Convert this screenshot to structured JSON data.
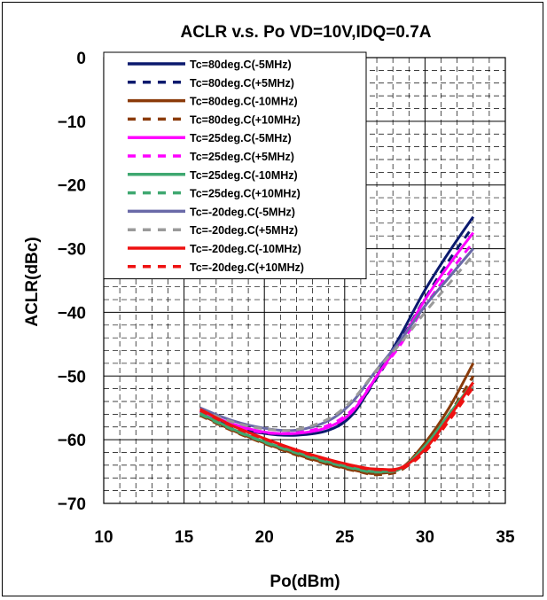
{
  "chart_data": {
    "type": "line",
    "title": "ACLR v.s. Po VD=10V,IDQ=0.7A",
    "xlabel": "Po(dBm)",
    "ylabel": "ACLR(dBc)",
    "xlim": [
      10,
      35
    ],
    "ylim": [
      -70,
      0
    ],
    "x_ticks": [
      "10",
      "15",
      "20",
      "25",
      "30",
      "35"
    ],
    "y_ticks": [
      "0",
      "-10",
      "-20",
      "-30",
      "-40",
      "-50",
      "-60",
      "-70"
    ],
    "grid": true,
    "legend_position": "top-left",
    "series": [
      {
        "name": "Tc=80deg.C(-5MHz)",
        "color": "#0b1a6e",
        "dash": "solid",
        "x": [
          16,
          18,
          20,
          22,
          24,
          25.5,
          27,
          28.5,
          30,
          31.5,
          33
        ],
        "y": [
          -55.5,
          -57.8,
          -59.0,
          -59.3,
          -58.5,
          -56.0,
          -50.0,
          -43.5,
          -36.5,
          -30.5,
          -25.0
        ]
      },
      {
        "name": "Tc=80deg.C(+5MHz)",
        "color": "#0b1a6e",
        "dash": "dashed",
        "x": [
          16,
          18,
          20,
          22,
          24,
          25.5,
          27,
          28.5,
          30,
          31.5,
          33
        ],
        "y": [
          -55.8,
          -58.0,
          -59.0,
          -59.0,
          -58.0,
          -55.8,
          -50.3,
          -44.3,
          -37.8,
          -31.8,
          -26.5
        ]
      },
      {
        "name": "Tc=80deg.C(-10MHz)",
        "color": "#8b3b0a",
        "dash": "solid",
        "x": [
          16,
          18,
          20,
          22,
          24,
          26,
          27,
          28.5,
          30,
          31.5,
          33
        ],
        "y": [
          -56.0,
          -58.5,
          -60.5,
          -62.3,
          -63.8,
          -65.0,
          -65.3,
          -64.5,
          -60.5,
          -55.0,
          -48.0
        ]
      },
      {
        "name": "Tc=80deg.C(+10MHz)",
        "color": "#8b3b0a",
        "dash": "dashed",
        "x": [
          16,
          18,
          20,
          22,
          24,
          26,
          27,
          28.5,
          30,
          31.5,
          33
        ],
        "y": [
          -56.2,
          -58.6,
          -60.6,
          -62.4,
          -63.9,
          -65.1,
          -65.5,
          -64.8,
          -61.3,
          -56.0,
          -50.0
        ]
      },
      {
        "name": "Tc=25deg.C(-5MHz)",
        "color": "#ff00ff",
        "dash": "solid",
        "x": [
          16,
          18,
          20,
          22,
          24,
          25.5,
          27,
          28.5,
          30,
          31.5,
          33
        ],
        "y": [
          -55.5,
          -57.5,
          -58.8,
          -59.0,
          -58.0,
          -55.5,
          -50.0,
          -44.5,
          -38.0,
          -32.5,
          -27.5
        ]
      },
      {
        "name": "Tc=25deg.C(+5MHz)",
        "color": "#ff00ff",
        "dash": "dashed",
        "x": [
          16,
          18,
          20,
          22,
          24,
          25.5,
          27,
          28.5,
          30,
          31.5,
          33
        ],
        "y": [
          -55.8,
          -57.8,
          -58.9,
          -58.9,
          -57.7,
          -55.2,
          -50.0,
          -45.0,
          -39.0,
          -33.8,
          -29.0
        ]
      },
      {
        "name": "Tc=25deg.C(-10MHz)",
        "color": "#3fa870",
        "dash": "solid",
        "x": [
          16,
          18,
          20,
          22,
          24,
          26,
          27,
          28.5,
          30,
          31.5,
          33
        ],
        "y": [
          -55.8,
          -58.3,
          -60.3,
          -62.0,
          -63.5,
          -64.7,
          -65.0,
          -64.5,
          -61.0,
          -56.0,
          -51.0
        ]
      },
      {
        "name": "Tc=25deg.C(+10MHz)",
        "color": "#3fa870",
        "dash": "dashed",
        "x": [
          16,
          18,
          20,
          22,
          24,
          26,
          27,
          28.5,
          30,
          31.5,
          33
        ],
        "y": [
          -56.0,
          -58.4,
          -60.4,
          -62.1,
          -63.6,
          -64.8,
          -65.1,
          -64.6,
          -61.4,
          -56.5,
          -51.5
        ]
      },
      {
        "name": "Tc=-20deg.C(-5MHz)",
        "color": "#6a6aa8",
        "dash": "solid",
        "x": [
          16,
          18,
          20,
          22,
          24,
          25.5,
          27,
          28.5,
          30,
          31.5,
          33
        ],
        "y": [
          -55.0,
          -57.0,
          -58.2,
          -58.5,
          -57.0,
          -54.0,
          -49.0,
          -44.3,
          -39.0,
          -34.5,
          -30.0
        ]
      },
      {
        "name": "Tc=-20deg.C(+5MHz)",
        "color": "#9a9a9a",
        "dash": "dashed",
        "x": [
          16,
          18,
          20,
          22,
          24,
          25.5,
          27,
          28.5,
          30,
          31.5,
          33
        ],
        "y": [
          -55.3,
          -57.2,
          -58.3,
          -58.4,
          -56.7,
          -53.7,
          -49.0,
          -44.8,
          -40.0,
          -35.5,
          -31.0
        ]
      },
      {
        "name": "Tc=-20deg.C(-10MHz)",
        "color": "#ee1111",
        "dash": "solid",
        "x": [
          16,
          18,
          20,
          22,
          24,
          26,
          27,
          28.5,
          30,
          31.5,
          33
        ],
        "y": [
          -55.2,
          -57.8,
          -59.8,
          -61.6,
          -63.1,
          -64.3,
          -64.6,
          -64.4,
          -61.5,
          -56.5,
          -51.0
        ]
      },
      {
        "name": "Tc=-20deg.C(+10MHz)",
        "color": "#ee1111",
        "dash": "dashed",
        "x": [
          16,
          18,
          20,
          22,
          24,
          26,
          27,
          28.5,
          30,
          31.5,
          33
        ],
        "y": [
          -55.4,
          -57.9,
          -59.9,
          -61.7,
          -63.2,
          -64.4,
          -64.7,
          -64.6,
          -61.9,
          -57.0,
          -51.8
        ]
      }
    ]
  }
}
